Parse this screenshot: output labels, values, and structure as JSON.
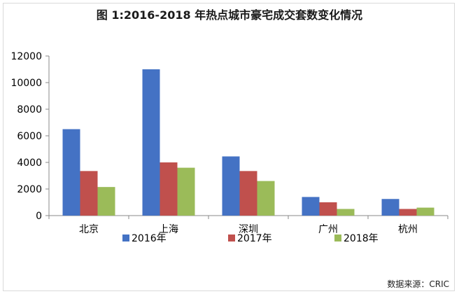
{
  "chart_data": {
    "type": "bar",
    "title": "图 1:2016-2018 年热点城市豪宅成交套数变化情况",
    "xlabel": "",
    "ylabel": "",
    "categories": [
      "北京",
      "上海",
      "深圳",
      "广州",
      "杭州"
    ],
    "series": [
      {
        "name": "2016年",
        "color": "#4472c4",
        "values": [
          6500,
          11000,
          4450,
          1400,
          1250
        ]
      },
      {
        "name": "2017年",
        "color": "#c0504d",
        "values": [
          3350,
          4000,
          3350,
          1000,
          500
        ]
      },
      {
        "name": "2018年",
        "color": "#9bbb59",
        "values": [
          2150,
          3600,
          2600,
          500,
          600
        ]
      }
    ],
    "ylim": [
      0,
      12000
    ],
    "yticks": [
      "0",
      "2000",
      "4000",
      "6000",
      "8000",
      "10000",
      "12000"
    ],
    "grid": false,
    "legend_position": "bottom"
  },
  "source": "数据来源：CRIC"
}
